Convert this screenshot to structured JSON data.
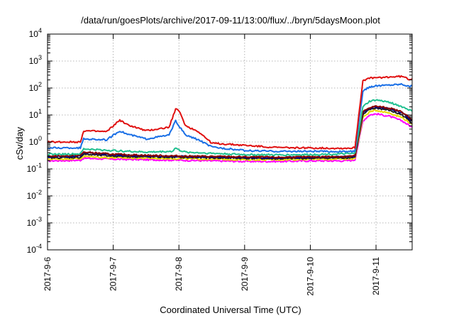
{
  "chart_data": {
    "type": "line",
    "title": "/data/run/goesPlots/archive/2017-09-11/13:00/flux/../bryn/5daysMoon.plot",
    "xlabel": "Coordinated Universal Time (UTC)",
    "ylabel": "cSv/day",
    "y_scale": "log",
    "x_unit": "days",
    "xlim": [
      0,
      5.55
    ],
    "ylim": [
      0.0001,
      10000
    ],
    "grid": true,
    "x_ticks": [
      {
        "label": "2017-9-6",
        "x": 0
      },
      {
        "label": "2017-9-7",
        "x": 1
      },
      {
        "label": "2017-9-8",
        "x": 2
      },
      {
        "label": "2017-9-9",
        "x": 3
      },
      {
        "label": "2017-9-10",
        "x": 4
      },
      {
        "label": "2017-9-11",
        "x": 5
      }
    ],
    "y_ticks": [
      {
        "base": "10",
        "exp": "-4",
        "v": 0.0001
      },
      {
        "base": "10",
        "exp": "-3",
        "v": 0.001
      },
      {
        "base": "10",
        "exp": "-2",
        "v": 0.01
      },
      {
        "base": "10",
        "exp": "-1",
        "v": 0.1
      },
      {
        "base": "10",
        "exp": "0",
        "v": 1
      },
      {
        "base": "10",
        "exp": "1",
        "v": 10
      },
      {
        "base": "10",
        "exp": "2",
        "v": 100
      },
      {
        "base": "10",
        "exp": "3",
        "v": 1000
      },
      {
        "base": "10",
        "exp": "4",
        "v": 10000
      }
    ],
    "series": [
      {
        "color": "#ff00ff",
        "x": [
          0,
          0.5,
          0.55,
          1,
          1.5,
          2,
          2.5,
          3,
          3.5,
          4,
          4.5,
          4.65,
          4.68,
          4.8,
          4.9,
          5.0,
          5.2,
          5.4,
          5.55
        ],
        "values": [
          0.2,
          0.21,
          0.25,
          0.23,
          0.22,
          0.21,
          0.2,
          0.19,
          0.19,
          0.2,
          0.2,
          0.21,
          0.22,
          6.0,
          10,
          11,
          9,
          6.0,
          3.5
        ]
      },
      {
        "color": "#e8d800",
        "x": [
          0,
          0.5,
          0.55,
          1,
          1.5,
          2,
          2.5,
          3,
          3.5,
          4,
          4.5,
          4.65,
          4.68,
          4.8,
          4.9,
          5.0,
          5.2,
          5.4,
          5.55
        ],
        "values": [
          0.23,
          0.24,
          0.29,
          0.26,
          0.25,
          0.24,
          0.23,
          0.22,
          0.22,
          0.23,
          0.23,
          0.24,
          0.25,
          8.0,
          13,
          15,
          12,
          8.0,
          4.5
        ]
      },
      {
        "color": "#202020",
        "x": [
          0,
          0.5,
          0.55,
          1,
          1.5,
          2,
          2.5,
          3,
          3.5,
          4,
          4.5,
          4.65,
          4.68,
          4.8,
          4.9,
          5.0,
          5.2,
          5.4,
          5.55
        ],
        "values": [
          0.26,
          0.27,
          0.35,
          0.3,
          0.28,
          0.27,
          0.26,
          0.25,
          0.24,
          0.25,
          0.26,
          0.27,
          0.28,
          10,
          16,
          18,
          15,
          10,
          5.0
        ]
      },
      {
        "color": "#000080",
        "x": [
          0,
          0.5,
          0.55,
          1,
          1.5,
          2,
          2.5,
          3,
          3.5,
          4,
          4.5,
          4.65,
          4.68,
          4.8,
          4.9,
          5.0,
          5.2,
          5.4,
          5.55
        ],
        "values": [
          0.28,
          0.3,
          0.4,
          0.33,
          0.3,
          0.29,
          0.28,
          0.27,
          0.26,
          0.27,
          0.28,
          0.29,
          0.3,
          12,
          18,
          20,
          17,
          12,
          6.0
        ]
      },
      {
        "color": "#8b0000",
        "x": [
          0,
          0.5,
          0.55,
          1,
          1.5,
          2,
          2.5,
          3,
          3.5,
          4,
          4.5,
          4.65,
          4.68,
          4.8,
          4.9,
          5.0,
          5.2,
          5.4,
          5.55
        ],
        "values": [
          0.3,
          0.32,
          0.42,
          0.35,
          0.32,
          0.3,
          0.29,
          0.28,
          0.27,
          0.28,
          0.29,
          0.3,
          0.31,
          13,
          19,
          21,
          18,
          13,
          6.5
        ]
      },
      {
        "color": "#20c090",
        "x": [
          0,
          0.5,
          0.55,
          1,
          1.5,
          1.9,
          1.95,
          2.0,
          2.1,
          2.5,
          3,
          3.5,
          4,
          4.5,
          4.65,
          4.68,
          4.8,
          4.9,
          5.0,
          5.2,
          5.4,
          5.55
        ],
        "values": [
          0.35,
          0.36,
          0.55,
          0.48,
          0.42,
          0.45,
          0.6,
          0.5,
          0.42,
          0.38,
          0.34,
          0.33,
          0.34,
          0.36,
          0.37,
          0.38,
          20,
          32,
          36,
          30,
          20,
          14
        ]
      },
      {
        "color": "#1a6fe6",
        "x": [
          0,
          0.5,
          0.55,
          0.9,
          1.1,
          1.2,
          1.5,
          1.85,
          1.95,
          2.0,
          2.1,
          2.3,
          2.5,
          3,
          3.5,
          4,
          4.5,
          4.65,
          4.68,
          4.8,
          4.9,
          5.0,
          5.2,
          5.4,
          5.5,
          5.55
        ],
        "values": [
          0.6,
          0.6,
          1.3,
          1.2,
          2.6,
          2.0,
          1.3,
          1.8,
          6.0,
          4.0,
          1.8,
          1.2,
          0.65,
          0.48,
          0.45,
          0.45,
          0.44,
          0.45,
          0.46,
          75,
          110,
          120,
          130,
          140,
          115,
          120
        ]
      },
      {
        "color": "#e01010",
        "x": [
          0,
          0.5,
          0.55,
          0.9,
          1.1,
          1.2,
          1.5,
          1.85,
          1.95,
          2.0,
          2.05,
          2.1,
          2.3,
          2.5,
          3,
          3.5,
          4,
          4.5,
          4.65,
          4.68,
          4.8,
          4.9,
          5.0,
          5.2,
          5.4,
          5.5,
          5.55
        ],
        "values": [
          1.0,
          1.0,
          2.6,
          2.4,
          6.5,
          4.5,
          2.6,
          3.5,
          17,
          14,
          8,
          4.0,
          2.4,
          0.9,
          0.75,
          0.62,
          0.6,
          0.58,
          0.6,
          0.62,
          190,
          230,
          240,
          255,
          270,
          210,
          220
        ]
      }
    ]
  }
}
